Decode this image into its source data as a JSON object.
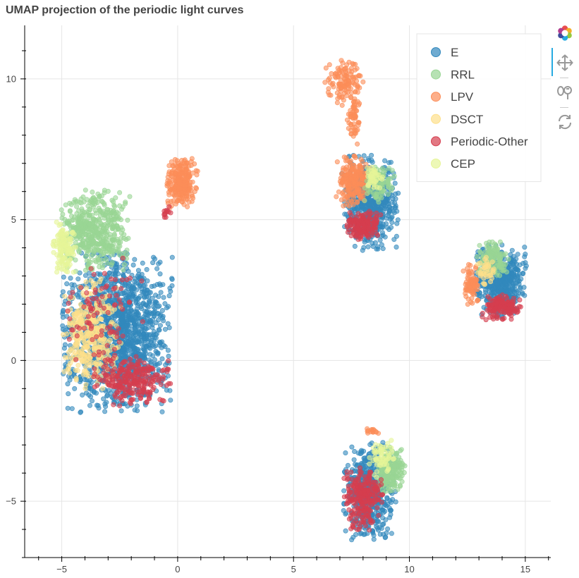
{
  "title": "UMAP projection of the periodic light curves",
  "toolbar": {
    "items": [
      "bokeh-logo-icon",
      "pan-icon",
      "wheel-zoom-icon",
      "reset-icon"
    ],
    "active": "pan-icon"
  },
  "chart_data": {
    "type": "scatter",
    "title": "UMAP projection of the periodic light curves",
    "xlabel": "",
    "ylabel": "",
    "xlim": [
      -6.6,
      16.1
    ],
    "ylim": [
      -7.0,
      11.9
    ],
    "x_ticks": [
      -5,
      0,
      5,
      10,
      15
    ],
    "y_ticks": [
      -5,
      0,
      5,
      10
    ],
    "grid": true,
    "legend_position": "top-right",
    "series": [
      {
        "name": "E",
        "color": "#3288bd"
      },
      {
        "name": "RRL",
        "color": "#99d594"
      },
      {
        "name": "LPV",
        "color": "#fc8d59"
      },
      {
        "name": "DSCT",
        "color": "#fee08b"
      },
      {
        "name": "Periodic-Other",
        "color": "#d53e4f"
      },
      {
        "name": "CEP",
        "color": "#e6f598"
      }
    ],
    "clusters": [
      {
        "series": "E",
        "center": [
          -2.6,
          1.0
        ],
        "spread": [
          1.55,
          1.85
        ],
        "n": 1500
      },
      {
        "series": "RRL",
        "center": [
          -3.6,
          4.6
        ],
        "spread": [
          1.0,
          0.95
        ],
        "n": 500
      },
      {
        "series": "CEP",
        "center": [
          -4.9,
          4.0
        ],
        "spread": [
          0.35,
          0.65
        ],
        "n": 120
      },
      {
        "series": "DSCT",
        "center": [
          -3.7,
          0.9
        ],
        "spread": [
          0.85,
          1.3
        ],
        "n": 350
      },
      {
        "series": "Periodic-Other",
        "center": [
          -2.0,
          -0.7
        ],
        "spread": [
          1.1,
          0.6
        ],
        "n": 250
      },
      {
        "series": "Periodic-Other",
        "center": [
          -3.2,
          1.8
        ],
        "spread": [
          1.1,
          1.5
        ],
        "n": 90
      },
      {
        "series": "LPV",
        "center": [
          0.2,
          6.3
        ],
        "spread": [
          0.45,
          0.6
        ],
        "n": 250
      },
      {
        "series": "Periodic-Other",
        "center": [
          -0.5,
          5.3
        ],
        "spread": [
          0.15,
          0.2
        ],
        "n": 12
      },
      {
        "series": "LPV",
        "center": [
          7.2,
          9.9
        ],
        "spread": [
          0.55,
          0.55
        ],
        "n": 120
      },
      {
        "series": "LPV",
        "center": [
          7.6,
          8.6
        ],
        "spread": [
          0.2,
          0.6
        ],
        "n": 60
      },
      {
        "series": "E",
        "center": [
          8.3,
          5.6
        ],
        "spread": [
          0.8,
          1.1
        ],
        "n": 600
      },
      {
        "series": "LPV",
        "center": [
          7.6,
          6.4
        ],
        "spread": [
          0.5,
          0.6
        ],
        "n": 220
      },
      {
        "series": "Periodic-Other",
        "center": [
          8.0,
          4.8
        ],
        "spread": [
          0.55,
          0.35
        ],
        "n": 160
      },
      {
        "series": "RRL",
        "center": [
          8.7,
          6.3
        ],
        "spread": [
          0.45,
          0.45
        ],
        "n": 100
      },
      {
        "series": "CEP",
        "center": [
          8.4,
          6.5
        ],
        "spread": [
          0.3,
          0.3
        ],
        "n": 40
      },
      {
        "series": "E",
        "center": [
          13.9,
          2.8
        ],
        "spread": [
          0.75,
          0.85
        ],
        "n": 500
      },
      {
        "series": "RRL",
        "center": [
          13.6,
          3.6
        ],
        "spread": [
          0.45,
          0.4
        ],
        "n": 120
      },
      {
        "series": "LPV",
        "center": [
          12.7,
          2.7
        ],
        "spread": [
          0.25,
          0.5
        ],
        "n": 80
      },
      {
        "series": "Periodic-Other",
        "center": [
          14.0,
          1.9
        ],
        "spread": [
          0.6,
          0.3
        ],
        "n": 150
      },
      {
        "series": "DSCT",
        "center": [
          13.3,
          3.2
        ],
        "spread": [
          0.35,
          0.4
        ],
        "n": 40
      },
      {
        "series": "E",
        "center": [
          8.3,
          -4.6
        ],
        "spread": [
          0.75,
          1.15
        ],
        "n": 550
      },
      {
        "series": "RRL",
        "center": [
          9.2,
          -3.9
        ],
        "spread": [
          0.4,
          0.55
        ],
        "n": 200
      },
      {
        "series": "CEP",
        "center": [
          8.8,
          -3.5
        ],
        "spread": [
          0.35,
          0.45
        ],
        "n": 60
      },
      {
        "series": "Periodic-Other",
        "center": [
          8.0,
          -4.9
        ],
        "spread": [
          0.55,
          0.75
        ],
        "n": 230
      },
      {
        "series": "LPV",
        "center": [
          8.4,
          -2.5
        ],
        "spread": [
          0.2,
          0.1
        ],
        "n": 15
      }
    ]
  }
}
